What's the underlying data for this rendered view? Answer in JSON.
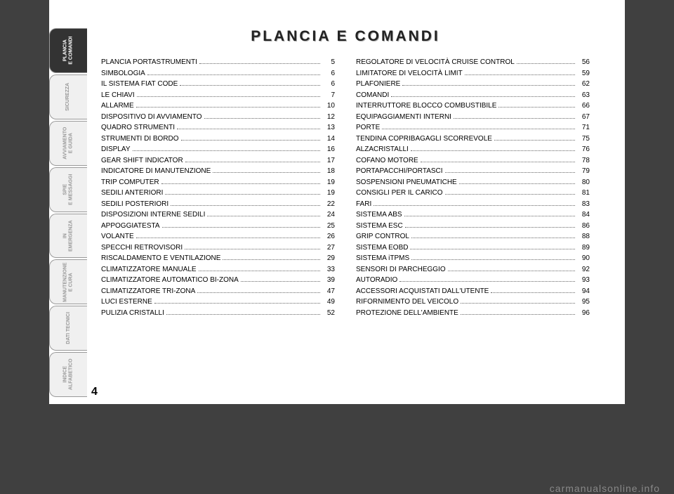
{
  "title": "PLANCIA E COMANDI",
  "page_number": "4",
  "watermark": "carmanualsonline.info",
  "tabs": [
    {
      "label": "PLANCIA\nE COMANDI",
      "active": true
    },
    {
      "label": "SICUREZZA",
      "active": false
    },
    {
      "label": "AVVIAMENTO\nE GUIDA",
      "active": false
    },
    {
      "label": "SPIE\nE MESSAGGI",
      "active": false
    },
    {
      "label": "IN\nEMERGENZA",
      "active": false
    },
    {
      "label": "MANUTENZIONE\nE CURA",
      "active": false
    },
    {
      "label": "DATI TECNICI",
      "active": false
    },
    {
      "label": "INDICE\nALFABETICO",
      "active": false
    }
  ],
  "toc_left": [
    {
      "label": "PLANCIA PORTASTRUMENTI",
      "page": "5"
    },
    {
      "label": "SIMBOLOGIA",
      "page": "6"
    },
    {
      "label": "IL SISTEMA FIAT CODE",
      "page": "6"
    },
    {
      "label": "LE CHIAVI",
      "page": "7"
    },
    {
      "label": "ALLARME",
      "page": "10"
    },
    {
      "label": "DISPOSITIVO DI AVVIAMENTO",
      "page": "12"
    },
    {
      "label": "QUADRO STRUMENTI",
      "page": "13"
    },
    {
      "label": "STRUMENTI DI BORDO",
      "page": "14"
    },
    {
      "label": "DISPLAY",
      "page": "16"
    },
    {
      "label": "GEAR SHIFT INDICATOR",
      "page": "17"
    },
    {
      "label": "INDICATORE DI MANUTENZIONE",
      "page": "18"
    },
    {
      "label": "TRIP COMPUTER",
      "page": "19"
    },
    {
      "label": "SEDILI ANTERIORI",
      "page": "19"
    },
    {
      "label": "SEDILI POSTERIORI",
      "page": "22"
    },
    {
      "label": "DISPOSIZIONI INTERNE SEDILI",
      "page": "24"
    },
    {
      "label": "APPOGGIATESTA",
      "page": "25"
    },
    {
      "label": "VOLANTE",
      "page": "26"
    },
    {
      "label": "SPECCHI RETROVISORI",
      "page": "27"
    },
    {
      "label": "RISCALDAMENTO E VENTILAZIONE",
      "page": "29"
    },
    {
      "label": "CLIMATIZZATORE MANUALE",
      "page": "33"
    },
    {
      "label": "CLIMATIZZATORE AUTOMATICO BI-ZONA",
      "page": "39"
    },
    {
      "label": "CLIMATIZZATORE TRI-ZONA",
      "page": "47"
    },
    {
      "label": "LUCI ESTERNE",
      "page": "49"
    },
    {
      "label": "PULIZIA CRISTALLI",
      "page": "52"
    }
  ],
  "toc_right": [
    {
      "label": "REGOLATORE DI VELOCITÀ CRUISE CONTROL",
      "page": "56"
    },
    {
      "label": "LIMITATORE DI VELOCITÀ LIMIT",
      "page": "59"
    },
    {
      "label": "PLAFONIERE",
      "page": "62"
    },
    {
      "label": "COMANDI",
      "page": "63"
    },
    {
      "label": "INTERRUTTORE BLOCCO COMBUSTIBILE",
      "page": "66"
    },
    {
      "label": "EQUIPAGGIAMENTI INTERNI",
      "page": "67"
    },
    {
      "label": "PORTE",
      "page": "71"
    },
    {
      "label": "TENDINA COPRIBAGAGLI SCORREVOLE",
      "page": "75"
    },
    {
      "label": "ALZACRISTALLI",
      "page": "76"
    },
    {
      "label": "COFANO MOTORE",
      "page": "78"
    },
    {
      "label": "PORTAPACCHI/PORTASCI",
      "page": "79"
    },
    {
      "label": "SOSPENSIONI PNEUMATICHE",
      "page": "80"
    },
    {
      "label": "CONSIGLI PER IL CARICO",
      "page": "81"
    },
    {
      "label": "FARI",
      "page": "83"
    },
    {
      "label": "SISTEMA ABS",
      "page": "84"
    },
    {
      "label": "SISTEMA ESC",
      "page": "86"
    },
    {
      "label": "GRIP CONTROL",
      "page": "88"
    },
    {
      "label": "SISTEMA EOBD",
      "page": "89"
    },
    {
      "label": "SISTEMA iTPMS",
      "page": "90"
    },
    {
      "label": "SENSORI DI PARCHEGGIO",
      "page": "92"
    },
    {
      "label": "AUTORADIO",
      "page": "93"
    },
    {
      "label": "ACCESSORI ACQUISTATI DALL'UTENTE",
      "page": "94"
    },
    {
      "label": "RIFORNIMENTO DEL VEICOLO",
      "page": "95"
    },
    {
      "label": "PROTEZIONE DELL'AMBIENTE",
      "page": "96"
    }
  ]
}
